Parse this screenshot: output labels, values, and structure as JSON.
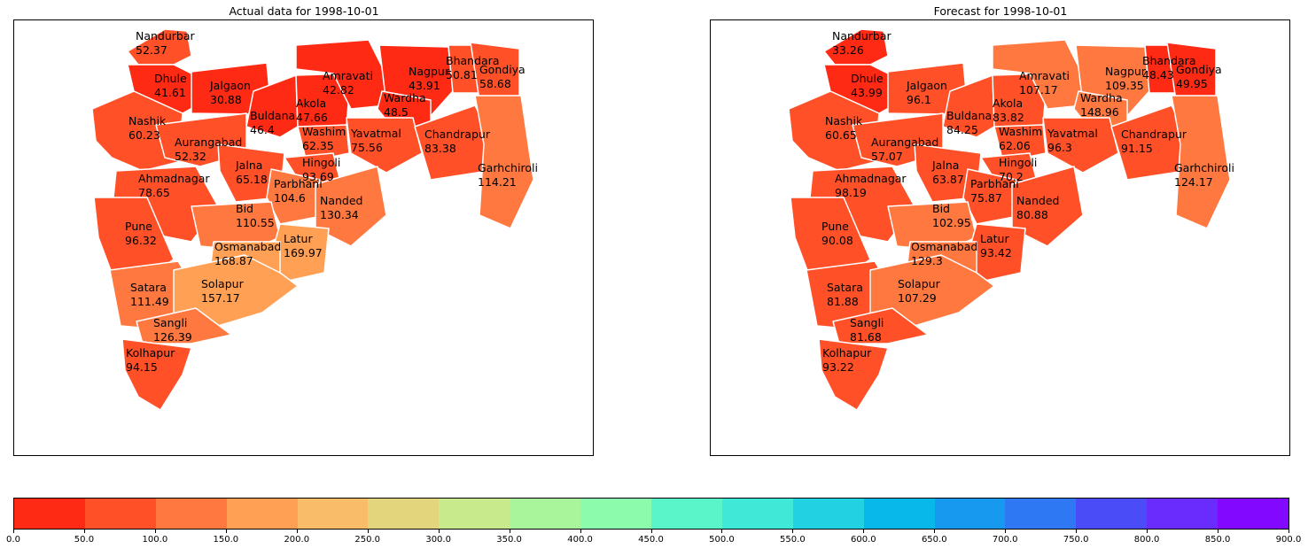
{
  "panels": {
    "left": {
      "title": "Actual data for 1998-10-01",
      "districts": [
        {
          "name": "Nandurbar",
          "value": "52.37"
        },
        {
          "name": "Dhule",
          "value": "41.61"
        },
        {
          "name": "Jalgaon",
          "value": "30.88"
        },
        {
          "name": "Buldana",
          "value": "46.4"
        },
        {
          "name": "Akola",
          "value": "47.66"
        },
        {
          "name": "Amravati",
          "value": "42.82"
        },
        {
          "name": "Nagpur",
          "value": "43.91"
        },
        {
          "name": "Wardha",
          "value": "48.5"
        },
        {
          "name": "Bhandara",
          "value": "50.81"
        },
        {
          "name": "Gondiya",
          "value": "58.68"
        },
        {
          "name": "Nashik",
          "value": "60.23"
        },
        {
          "name": "Aurangabad",
          "value": "52.32"
        },
        {
          "name": "Washim",
          "value": "62.35"
        },
        {
          "name": "Yavatmal",
          "value": "75.56"
        },
        {
          "name": "Chandrapur",
          "value": "83.38"
        },
        {
          "name": "Garhchiroli",
          "value": "114.21"
        },
        {
          "name": "Jalna",
          "value": "65.18"
        },
        {
          "name": "Hingoli",
          "value": "93.69"
        },
        {
          "name": "Parbhani",
          "value": "104.6"
        },
        {
          "name": "Ahmadnagar",
          "value": "78.65"
        },
        {
          "name": "Bid",
          "value": "110.55"
        },
        {
          "name": "Nanded",
          "value": "130.34"
        },
        {
          "name": "Pune",
          "value": "96.32"
        },
        {
          "name": "Latur",
          "value": "169.97"
        },
        {
          "name": "Osmanabad",
          "value": "168.87"
        },
        {
          "name": "Satara",
          "value": "111.49"
        },
        {
          "name": "Solapur",
          "value": "157.17"
        },
        {
          "name": "Sangli",
          "value": "126.39"
        },
        {
          "name": "Kolhapur",
          "value": "94.15"
        }
      ]
    },
    "right": {
      "title": "Forecast for 1998-10-01",
      "districts": [
        {
          "name": "Nandurbar",
          "value": "33.26"
        },
        {
          "name": "Dhule",
          "value": "43.99"
        },
        {
          "name": "Jalgaon",
          "value": "96.1"
        },
        {
          "name": "Buldana",
          "value": "84.25"
        },
        {
          "name": "Akola",
          "value": "83.82"
        },
        {
          "name": "Amravati",
          "value": "107.17"
        },
        {
          "name": "Nagpur",
          "value": "109.35"
        },
        {
          "name": "Wardha",
          "value": "148.96"
        },
        {
          "name": "Bhandara",
          "value": "48.43"
        },
        {
          "name": "Gondiya",
          "value": "49.95"
        },
        {
          "name": "Nashik",
          "value": "60.65"
        },
        {
          "name": "Aurangabad",
          "value": "57.07"
        },
        {
          "name": "Washim",
          "value": "62.06"
        },
        {
          "name": "Yavatmal",
          "value": "96.3"
        },
        {
          "name": "Chandrapur",
          "value": "91.15"
        },
        {
          "name": "Garhchiroli",
          "value": "124.17"
        },
        {
          "name": "Jalna",
          "value": "63.87"
        },
        {
          "name": "Hingoli",
          "value": "70.2"
        },
        {
          "name": "Parbhani",
          "value": "75.87"
        },
        {
          "name": "Ahmadnagar",
          "value": "98.19"
        },
        {
          "name": "Bid",
          "value": "102.95"
        },
        {
          "name": "Nanded",
          "value": "80.88"
        },
        {
          "name": "Pune",
          "value": "90.08"
        },
        {
          "name": "Latur",
          "value": "93.42"
        },
        {
          "name": "Osmanabad",
          "value": "129.3"
        },
        {
          "name": "Satara",
          "value": "81.88"
        },
        {
          "name": "Solapur",
          "value": "107.29"
        },
        {
          "name": "Sangli",
          "value": "81.68"
        },
        {
          "name": "Kolhapur",
          "value": "93.22"
        }
      ]
    }
  },
  "colorbar": {
    "ticks": [
      "0.0",
      "50.0",
      "100.0",
      "150.0",
      "200.0",
      "250.0",
      "300.0",
      "350.0",
      "400.0",
      "450.0",
      "500.0",
      "550.0",
      "600.0",
      "650.0",
      "700.0",
      "750.0",
      "800.0",
      "850.0",
      "900.0"
    ],
    "colors": [
      "#ff2a14",
      "#ff5028",
      "#ff7840",
      "#ffa055",
      "#f9bd6a",
      "#e2d57c",
      "#c8ea8c",
      "#a8f59c",
      "#8cfcac",
      "#5af5c8",
      "#40e8d8",
      "#22d2e2",
      "#08b8ea",
      "#1899f0",
      "#2e78f4",
      "#4a4cf8",
      "#6a2cfc",
      "#8208ff"
    ]
  }
}
